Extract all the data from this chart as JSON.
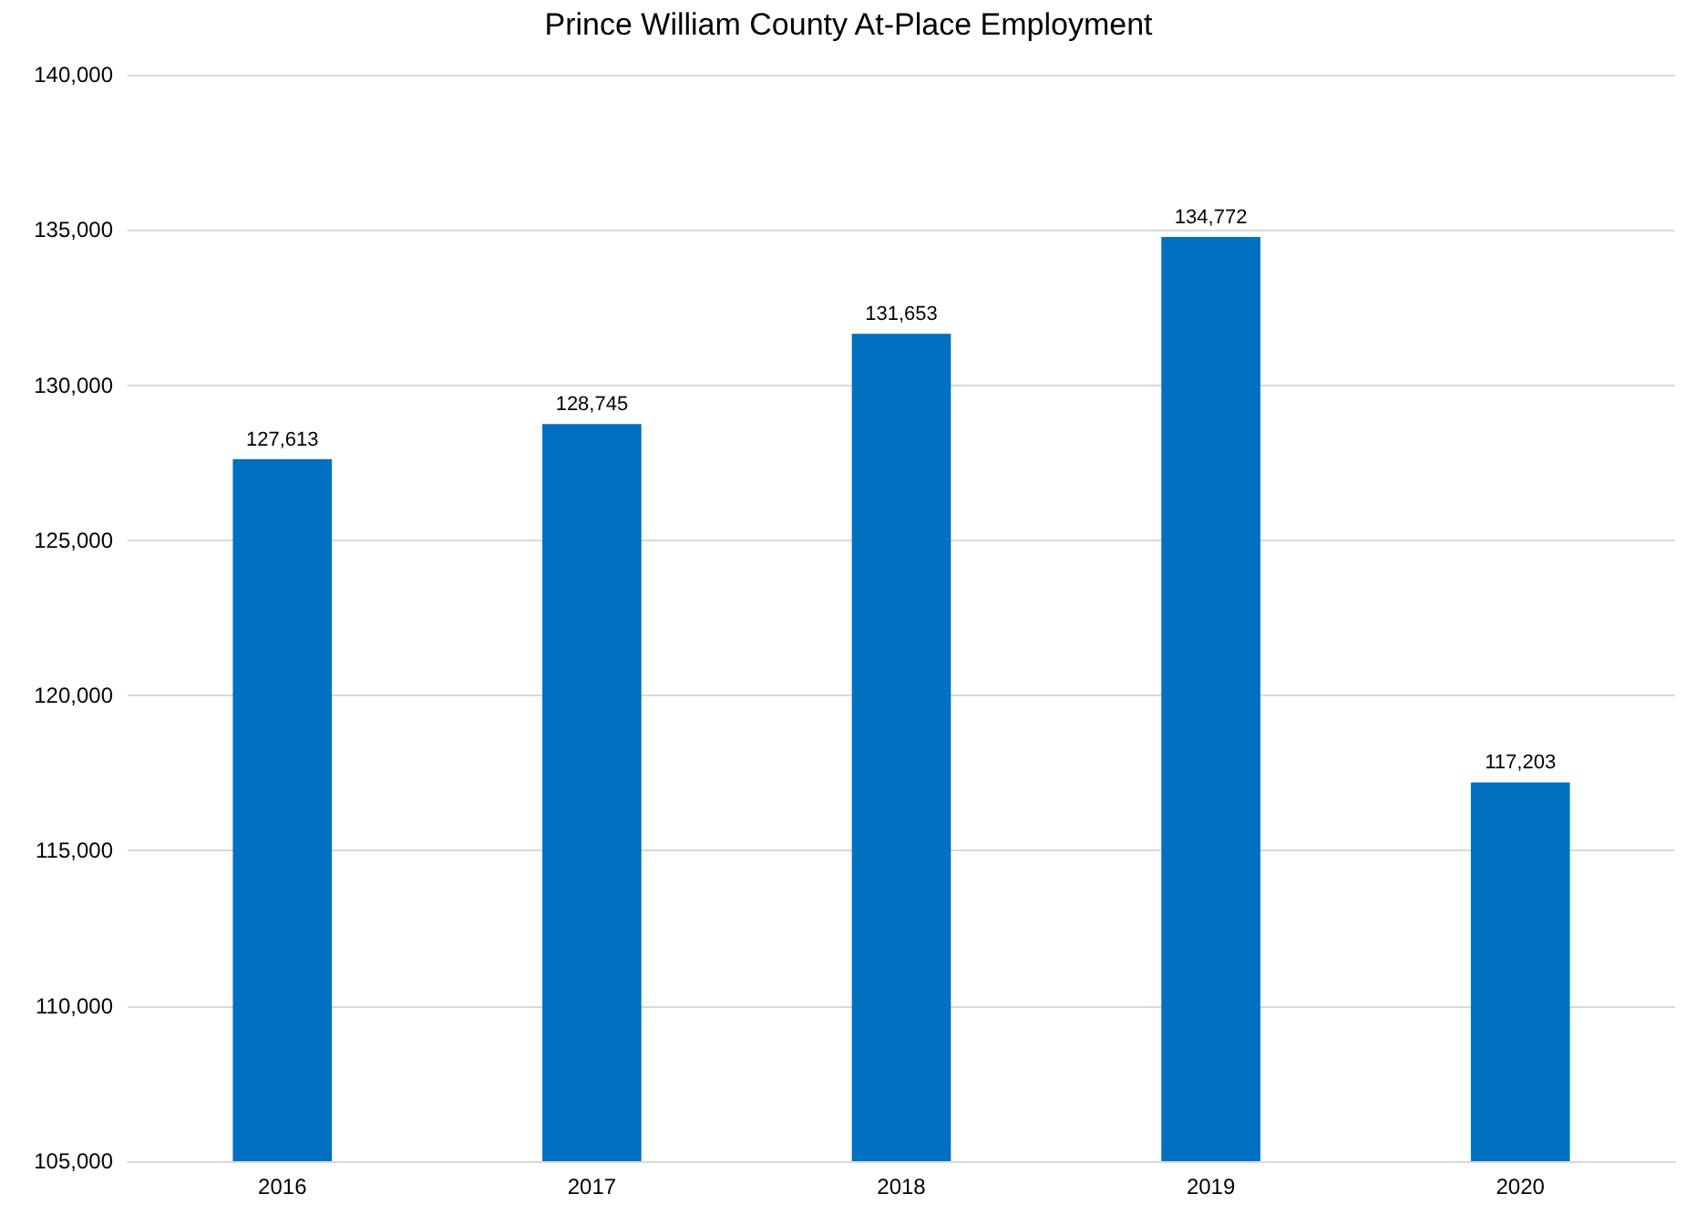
{
  "chart_data": {
    "type": "bar",
    "title": "Prince William County At-Place Employment",
    "categories": [
      "2016",
      "2017",
      "2018",
      "2019",
      "2020"
    ],
    "values": [
      127613,
      128745,
      131653,
      134772,
      117203
    ],
    "value_labels": [
      "127,613",
      "128,745",
      "131,653",
      "134,772",
      "117,203"
    ],
    "color": "#0070c0",
    "ylim": [
      105000,
      140000
    ],
    "yticks": [
      {
        "value": 105000,
        "label": "105,000"
      },
      {
        "value": 110000,
        "label": "110,000"
      },
      {
        "value": 115000,
        "label": "115,000"
      },
      {
        "value": 120000,
        "label": "120,000"
      },
      {
        "value": 125000,
        "label": "125,000"
      },
      {
        "value": 130000,
        "label": "130,000"
      },
      {
        "value": 135000,
        "label": "135,000"
      },
      {
        "value": 140000,
        "label": "140,000"
      }
    ],
    "grid": "y"
  }
}
